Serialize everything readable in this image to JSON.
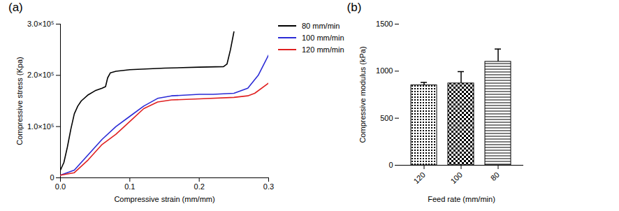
{
  "chart_data": [
    {
      "type": "line",
      "title": "(a)",
      "x_label": "Compressive strain (mm/mm)",
      "y_label": "Compressive stress (Kpa)",
      "xlim": [
        0,
        0.3
      ],
      "xticks": [
        {
          "value": 0,
          "label": "0.0"
        },
        0.1,
        0.2,
        0.3
      ],
      "ylim": [
        0,
        300000
      ],
      "yticks": [
        0,
        {
          "value": 100000,
          "label": "1.0×10⁵"
        },
        {
          "value": 200000,
          "label": "2.0×10⁵"
        },
        {
          "value": 300000,
          "label": "3.0×10⁵"
        }
      ],
      "grid": false,
      "legend": "right",
      "series": [
        {
          "name": "80 mm/min",
          "color": "#000000",
          "x": [
            0,
            0.005,
            0.01,
            0.015,
            0.02,
            0.025,
            0.03,
            0.04,
            0.05,
            0.06,
            0.065,
            0.068,
            0.072,
            0.08,
            0.1,
            0.15,
            0.2,
            0.235,
            0.24,
            0.245,
            0.25
          ],
          "values": [
            15000,
            30000,
            60000,
            95000,
            125000,
            140000,
            150000,
            162000,
            170000,
            175000,
            178000,
            195000,
            205000,
            208000,
            211000,
            214000,
            216000,
            217000,
            222000,
            250000,
            285000
          ]
        },
        {
          "name": "100 mm/min",
          "color": "#2b2bd6",
          "x": [
            0,
            0.02,
            0.04,
            0.06,
            0.08,
            0.1,
            0.12,
            0.14,
            0.16,
            0.2,
            0.22,
            0.25,
            0.27,
            0.285,
            0.3
          ],
          "values": [
            5000,
            15000,
            45000,
            75000,
            100000,
            120000,
            140000,
            155000,
            160000,
            163000,
            163000,
            165000,
            175000,
            200000,
            240000
          ]
        },
        {
          "name": "120 mm/min",
          "color": "#e02020",
          "x": [
            0,
            0.02,
            0.04,
            0.06,
            0.08,
            0.1,
            0.12,
            0.14,
            0.16,
            0.2,
            0.25,
            0.27,
            0.28,
            0.3
          ],
          "values": [
            5000,
            10000,
            35000,
            65000,
            85000,
            110000,
            135000,
            148000,
            152000,
            154000,
            157000,
            160000,
            165000,
            185000
          ]
        }
      ]
    },
    {
      "type": "bar",
      "title": "(b)",
      "x_label": "Feed rate (mm/min)",
      "y_label": "Compressive modulus (kPa)",
      "categories": [
        "120",
        "100",
        "80"
      ],
      "values": [
        850,
        870,
        1100
      ],
      "errors": [
        30,
        125,
        135
      ],
      "color": "#000000",
      "ylim": [
        0,
        1500
      ],
      "yticks": [
        0,
        500,
        1000,
        1500
      ],
      "grid": false
    }
  ]
}
